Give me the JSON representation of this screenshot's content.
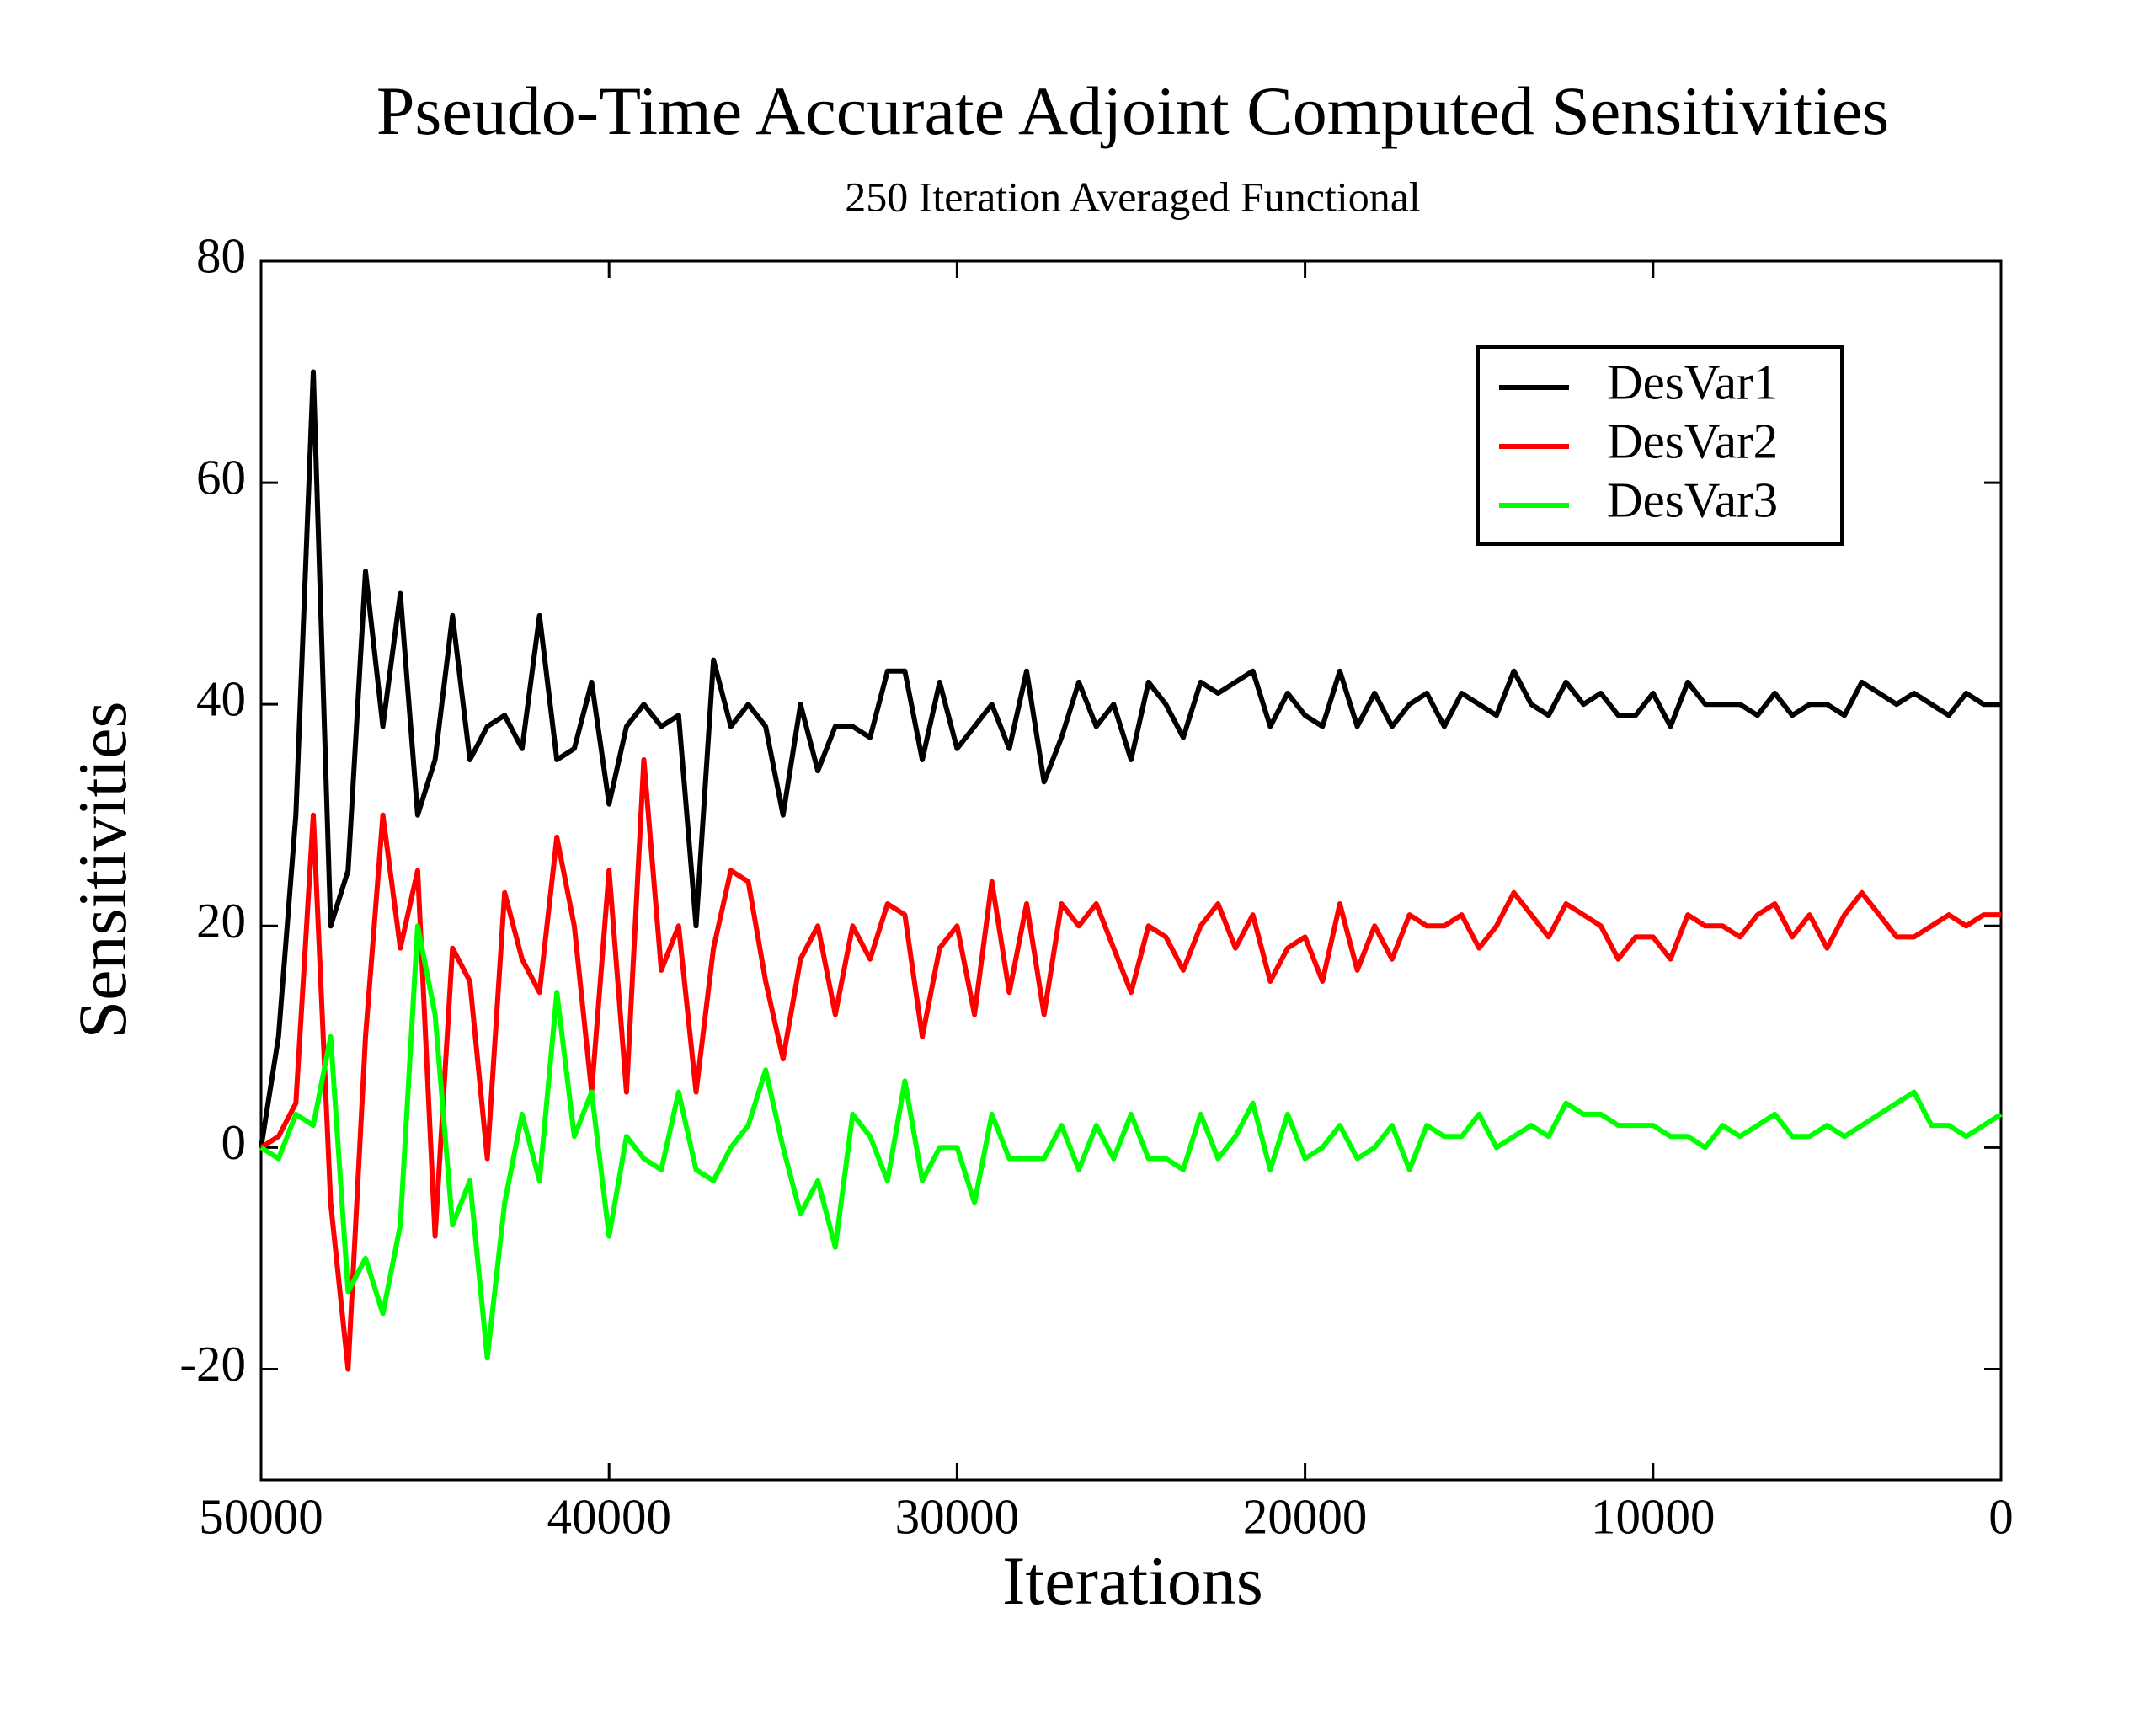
{
  "chart_data": {
    "type": "line",
    "title": "Pseudo-Time Accurate  Adjoint Computed Sensitivities",
    "subtitle": "250 Iteration Averaged Functional",
    "xlabel": "Iterations",
    "ylabel": "Sensitivities",
    "xlim": [
      50000,
      0
    ],
    "xticks": [
      50000,
      40000,
      30000,
      20000,
      10000,
      0
    ],
    "ylim": [
      -30,
      80
    ],
    "yticks": [
      -20,
      0,
      20,
      40,
      60,
      80
    ],
    "legend": "upper right",
    "x": [
      50000,
      49500,
      49000,
      48500,
      48000,
      47500,
      47000,
      46500,
      46000,
      45500,
      45000,
      44500,
      44000,
      43500,
      43000,
      42500,
      42000,
      41500,
      41000,
      40500,
      40000,
      39500,
      39000,
      38500,
      38000,
      37500,
      37000,
      36500,
      36000,
      35500,
      35000,
      34500,
      34000,
      33500,
      33000,
      32500,
      32000,
      31500,
      31000,
      30500,
      30000,
      29500,
      29000,
      28500,
      28000,
      27500,
      27000,
      26500,
      26000,
      25500,
      25000,
      24500,
      24000,
      23500,
      23000,
      22500,
      22000,
      21500,
      21000,
      20500,
      20000,
      19500,
      19000,
      18500,
      18000,
      17500,
      17000,
      16500,
      16000,
      15500,
      15000,
      14500,
      14000,
      13500,
      13000,
      12500,
      12000,
      11500,
      11000,
      10500,
      10000,
      9500,
      9000,
      8500,
      8000,
      7500,
      7000,
      6500,
      6000,
      5500,
      5000,
      4500,
      4000,
      3500,
      3000,
      2500,
      2000,
      1500,
      1000,
      500,
      0
    ],
    "series": [
      {
        "name": "DesVar1",
        "color": "#000000",
        "values": [
          0,
          10,
          30,
          70,
          20,
          25,
          52,
          38,
          50,
          30,
          35,
          48,
          35,
          38,
          39,
          36,
          48,
          35,
          36,
          42,
          31,
          38,
          40,
          38,
          39,
          20,
          44,
          38,
          40,
          38,
          30,
          40,
          34,
          38,
          38,
          37,
          43,
          43,
          35,
          42,
          36,
          38,
          40,
          36,
          43,
          33,
          37,
          42,
          38,
          40,
          35,
          42,
          40,
          37,
          42,
          41,
          42,
          43,
          38,
          41,
          39,
          38,
          43,
          38,
          41,
          38,
          40,
          41,
          38,
          41,
          40,
          39,
          43,
          40,
          39,
          42,
          40,
          41,
          39,
          39,
          41,
          38,
          42,
          40,
          40,
          40,
          39,
          41,
          39,
          40,
          40,
          39,
          42,
          41,
          40,
          41,
          40,
          39,
          41,
          40,
          40
        ]
      },
      {
        "name": "DesVar2",
        "color": "#ff0000",
        "values": [
          0,
          1,
          4,
          30,
          -5,
          -20,
          10,
          30,
          18,
          25,
          -8,
          18,
          15,
          -1,
          23,
          17,
          14,
          28,
          20,
          5,
          25,
          5,
          35,
          16,
          20,
          5,
          18,
          25,
          24,
          15,
          8,
          17,
          20,
          12,
          20,
          17,
          22,
          21,
          10,
          18,
          20,
          12,
          24,
          14,
          22,
          12,
          22,
          20,
          22,
          18,
          14,
          20,
          19,
          16,
          20,
          22,
          18,
          21,
          15,
          18,
          19,
          15,
          22,
          16,
          20,
          17,
          21,
          20,
          20,
          21,
          18,
          20,
          23,
          21,
          19,
          22,
          21,
          20,
          17,
          19,
          19,
          17,
          21,
          20,
          20,
          19,
          21,
          22,
          19,
          21,
          18,
          21,
          23,
          21,
          19,
          19,
          20,
          21,
          20,
          21,
          21
        ]
      },
      {
        "name": "DesVar3",
        "color": "#00ff00",
        "values": [
          0,
          -1,
          3,
          2,
          10,
          -13,
          -10,
          -15,
          -7,
          20,
          12,
          -7,
          -3,
          -19,
          -5,
          3,
          -3,
          14,
          1,
          5,
          -8,
          1,
          -1,
          -2,
          5,
          -2,
          -3,
          0,
          2,
          7,
          0,
          -6,
          -3,
          -9,
          3,
          1,
          -3,
          6,
          -3,
          0,
          0,
          -5,
          3,
          -1,
          -1,
          -1,
          2,
          -2,
          2,
          -1,
          3,
          -1,
          -1,
          -2,
          3,
          -1,
          1,
          4,
          -2,
          3,
          -1,
          0,
          2,
          -1,
          0,
          2,
          -2,
          2,
          1,
          1,
          3,
          0,
          1,
          2,
          1,
          4,
          3,
          3,
          2,
          2,
          2,
          1,
          1,
          0,
          2,
          1,
          2,
          3,
          1,
          1,
          2,
          1,
          2,
          3,
          4,
          5,
          2,
          2,
          1,
          2,
          3
        ]
      }
    ]
  }
}
